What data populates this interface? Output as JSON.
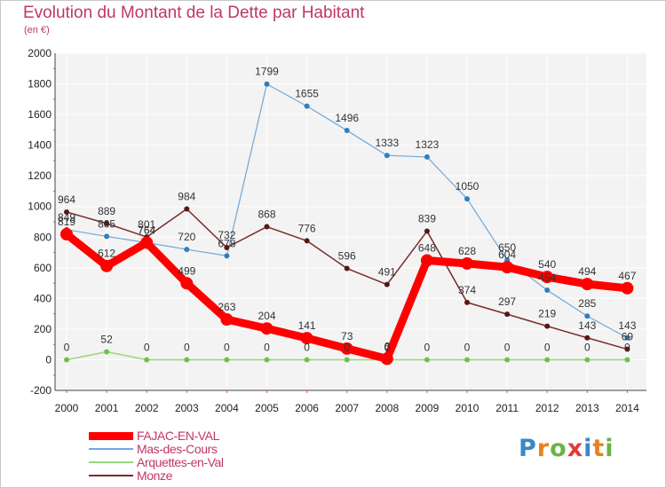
{
  "title": "Evolution du Montant de la Dette par Habitant",
  "subtitle": "(en €)",
  "logo": {
    "text": "Proxiti",
    "letters": [
      {
        "ch": "P",
        "color": "#3a86c8"
      },
      {
        "ch": "r",
        "color": "#e8821e"
      },
      {
        "ch": "o",
        "color": "#6bb24a"
      },
      {
        "ch": "x",
        "color": "#e23b3b"
      },
      {
        "ch": "i",
        "color": "#3a86c8"
      },
      {
        "ch": "t",
        "color": "#e8821e"
      },
      {
        "ch": "i",
        "color": "#6bb24a"
      }
    ]
  },
  "chart_data": {
    "type": "line",
    "title": "Evolution du Montant de la Dette par Habitant",
    "subtitle": "(en €)",
    "x": [
      "2000",
      "2001",
      "2002",
      "2003",
      "2004",
      "2005",
      "2006",
      "2007",
      "2008",
      "2009",
      "2010",
      "2011",
      "2012",
      "2013",
      "2014"
    ],
    "ylim": [
      -200,
      2000
    ],
    "yticks": [
      "-200",
      "0",
      "200",
      "400",
      "600",
      "800",
      "1000",
      "1200",
      "1400",
      "1600",
      "1800",
      "2000"
    ],
    "grid": true,
    "legend_position": "bottom-left",
    "series": [
      {
        "name": "FAJAC-EN-VAL",
        "color": "#ff0000",
        "marker": "#ff0000",
        "values": [
          819,
          612,
          764,
          499,
          263,
          204,
          141,
          73,
          6,
          648,
          628,
          604,
          540,
          494,
          467
        ],
        "labels": [
          "819",
          "612",
          "764",
          "499",
          "263",
          "204",
          "141",
          "73",
          "6",
          "648",
          "628",
          "604",
          "540",
          "494",
          "467"
        ]
      },
      {
        "name": "Mas-des-Cours",
        "color": "#6fa7d9",
        "marker": "#2f7fc0",
        "values": [
          849,
          805,
          764,
          720,
          678,
          1799,
          1655,
          1496,
          1333,
          1323,
          1050,
          650,
          454,
          285,
          143
        ],
        "labels": [
          "849",
          "805",
          "764",
          "720",
          "678",
          "1799",
          "1655",
          "1496",
          "1333",
          "1323",
          "1050",
          "650",
          "454",
          "285",
          "143"
        ]
      },
      {
        "name": "Arquettes-en-Val",
        "color": "#9ad77a",
        "marker": "#6cc24a",
        "values": [
          0,
          52,
          0,
          0,
          0,
          0,
          0,
          0,
          0,
          0,
          0,
          0,
          0,
          0,
          0
        ],
        "labels": [
          "0",
          "52",
          "0",
          "0",
          "0",
          "0",
          "0",
          "0",
          "0",
          "0",
          "0",
          "0",
          "0",
          "0",
          "0"
        ]
      },
      {
        "name": "Monze",
        "color": "#7a2a2a",
        "marker": "#5a1616",
        "values": [
          964,
          889,
          801,
          984,
          732,
          868,
          776,
          596,
          491,
          839,
          374,
          297,
          219,
          143,
          69
        ],
        "labels": [
          "964",
          "889",
          "801",
          "984",
          "732",
          "868",
          "776",
          "596",
          "491",
          "839",
          "374",
          "297",
          "219",
          "143",
          "69"
        ]
      }
    ]
  }
}
